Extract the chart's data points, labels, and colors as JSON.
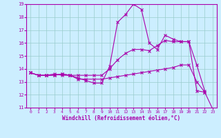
{
  "xlabel": "Windchill (Refroidissement éolien,°C)",
  "xlim": [
    -0.5,
    23.5
  ],
  "ylim": [
    11,
    19
  ],
  "xticks": [
    0,
    1,
    2,
    3,
    4,
    5,
    6,
    7,
    8,
    9,
    10,
    11,
    12,
    13,
    14,
    15,
    16,
    17,
    18,
    19,
    20,
    21,
    22,
    23
  ],
  "yticks": [
    11,
    12,
    13,
    14,
    15,
    16,
    17,
    18,
    19
  ],
  "background_color": "#cceeff",
  "line_color": "#aa00aa",
  "grid_color": "#99cccc",
  "line1_x": [
    0,
    1,
    2,
    3,
    4,
    5,
    6,
    7,
    8,
    9,
    10,
    11,
    12,
    13,
    14,
    15,
    16,
    17,
    18,
    19,
    20,
    21,
    22,
    23
  ],
  "line1_y": [
    13.7,
    13.5,
    13.5,
    13.6,
    13.5,
    13.5,
    13.3,
    13.1,
    12.9,
    12.9,
    14.2,
    17.6,
    18.2,
    19.0,
    18.6,
    16.0,
    15.5,
    16.6,
    16.3,
    16.1,
    16.1,
    12.3,
    12.2,
    null
  ],
  "line2_x": [
    0,
    1,
    2,
    3,
    4,
    5,
    6,
    7,
    8,
    9,
    10,
    11,
    12,
    13,
    14,
    15,
    16,
    17,
    18,
    19,
    20,
    21,
    22,
    23
  ],
  "line2_y": [
    13.7,
    13.5,
    13.5,
    13.5,
    13.6,
    13.5,
    13.5,
    13.5,
    13.5,
    13.5,
    14.0,
    14.7,
    15.2,
    15.5,
    15.5,
    15.4,
    15.8,
    16.2,
    16.1,
    16.1,
    16.1,
    14.3,
    12.3,
    null
  ],
  "line3_x": [
    0,
    1,
    2,
    3,
    4,
    5,
    6,
    7,
    8,
    9,
    10,
    11,
    12,
    13,
    14,
    15,
    16,
    17,
    18,
    19,
    20,
    21,
    22,
    23
  ],
  "line3_y": [
    13.7,
    13.5,
    13.5,
    13.5,
    13.6,
    13.5,
    13.2,
    13.2,
    13.2,
    13.2,
    13.3,
    13.4,
    13.5,
    13.6,
    13.7,
    13.8,
    13.9,
    14.0,
    14.1,
    14.3,
    14.3,
    13.0,
    12.2,
    10.9
  ]
}
